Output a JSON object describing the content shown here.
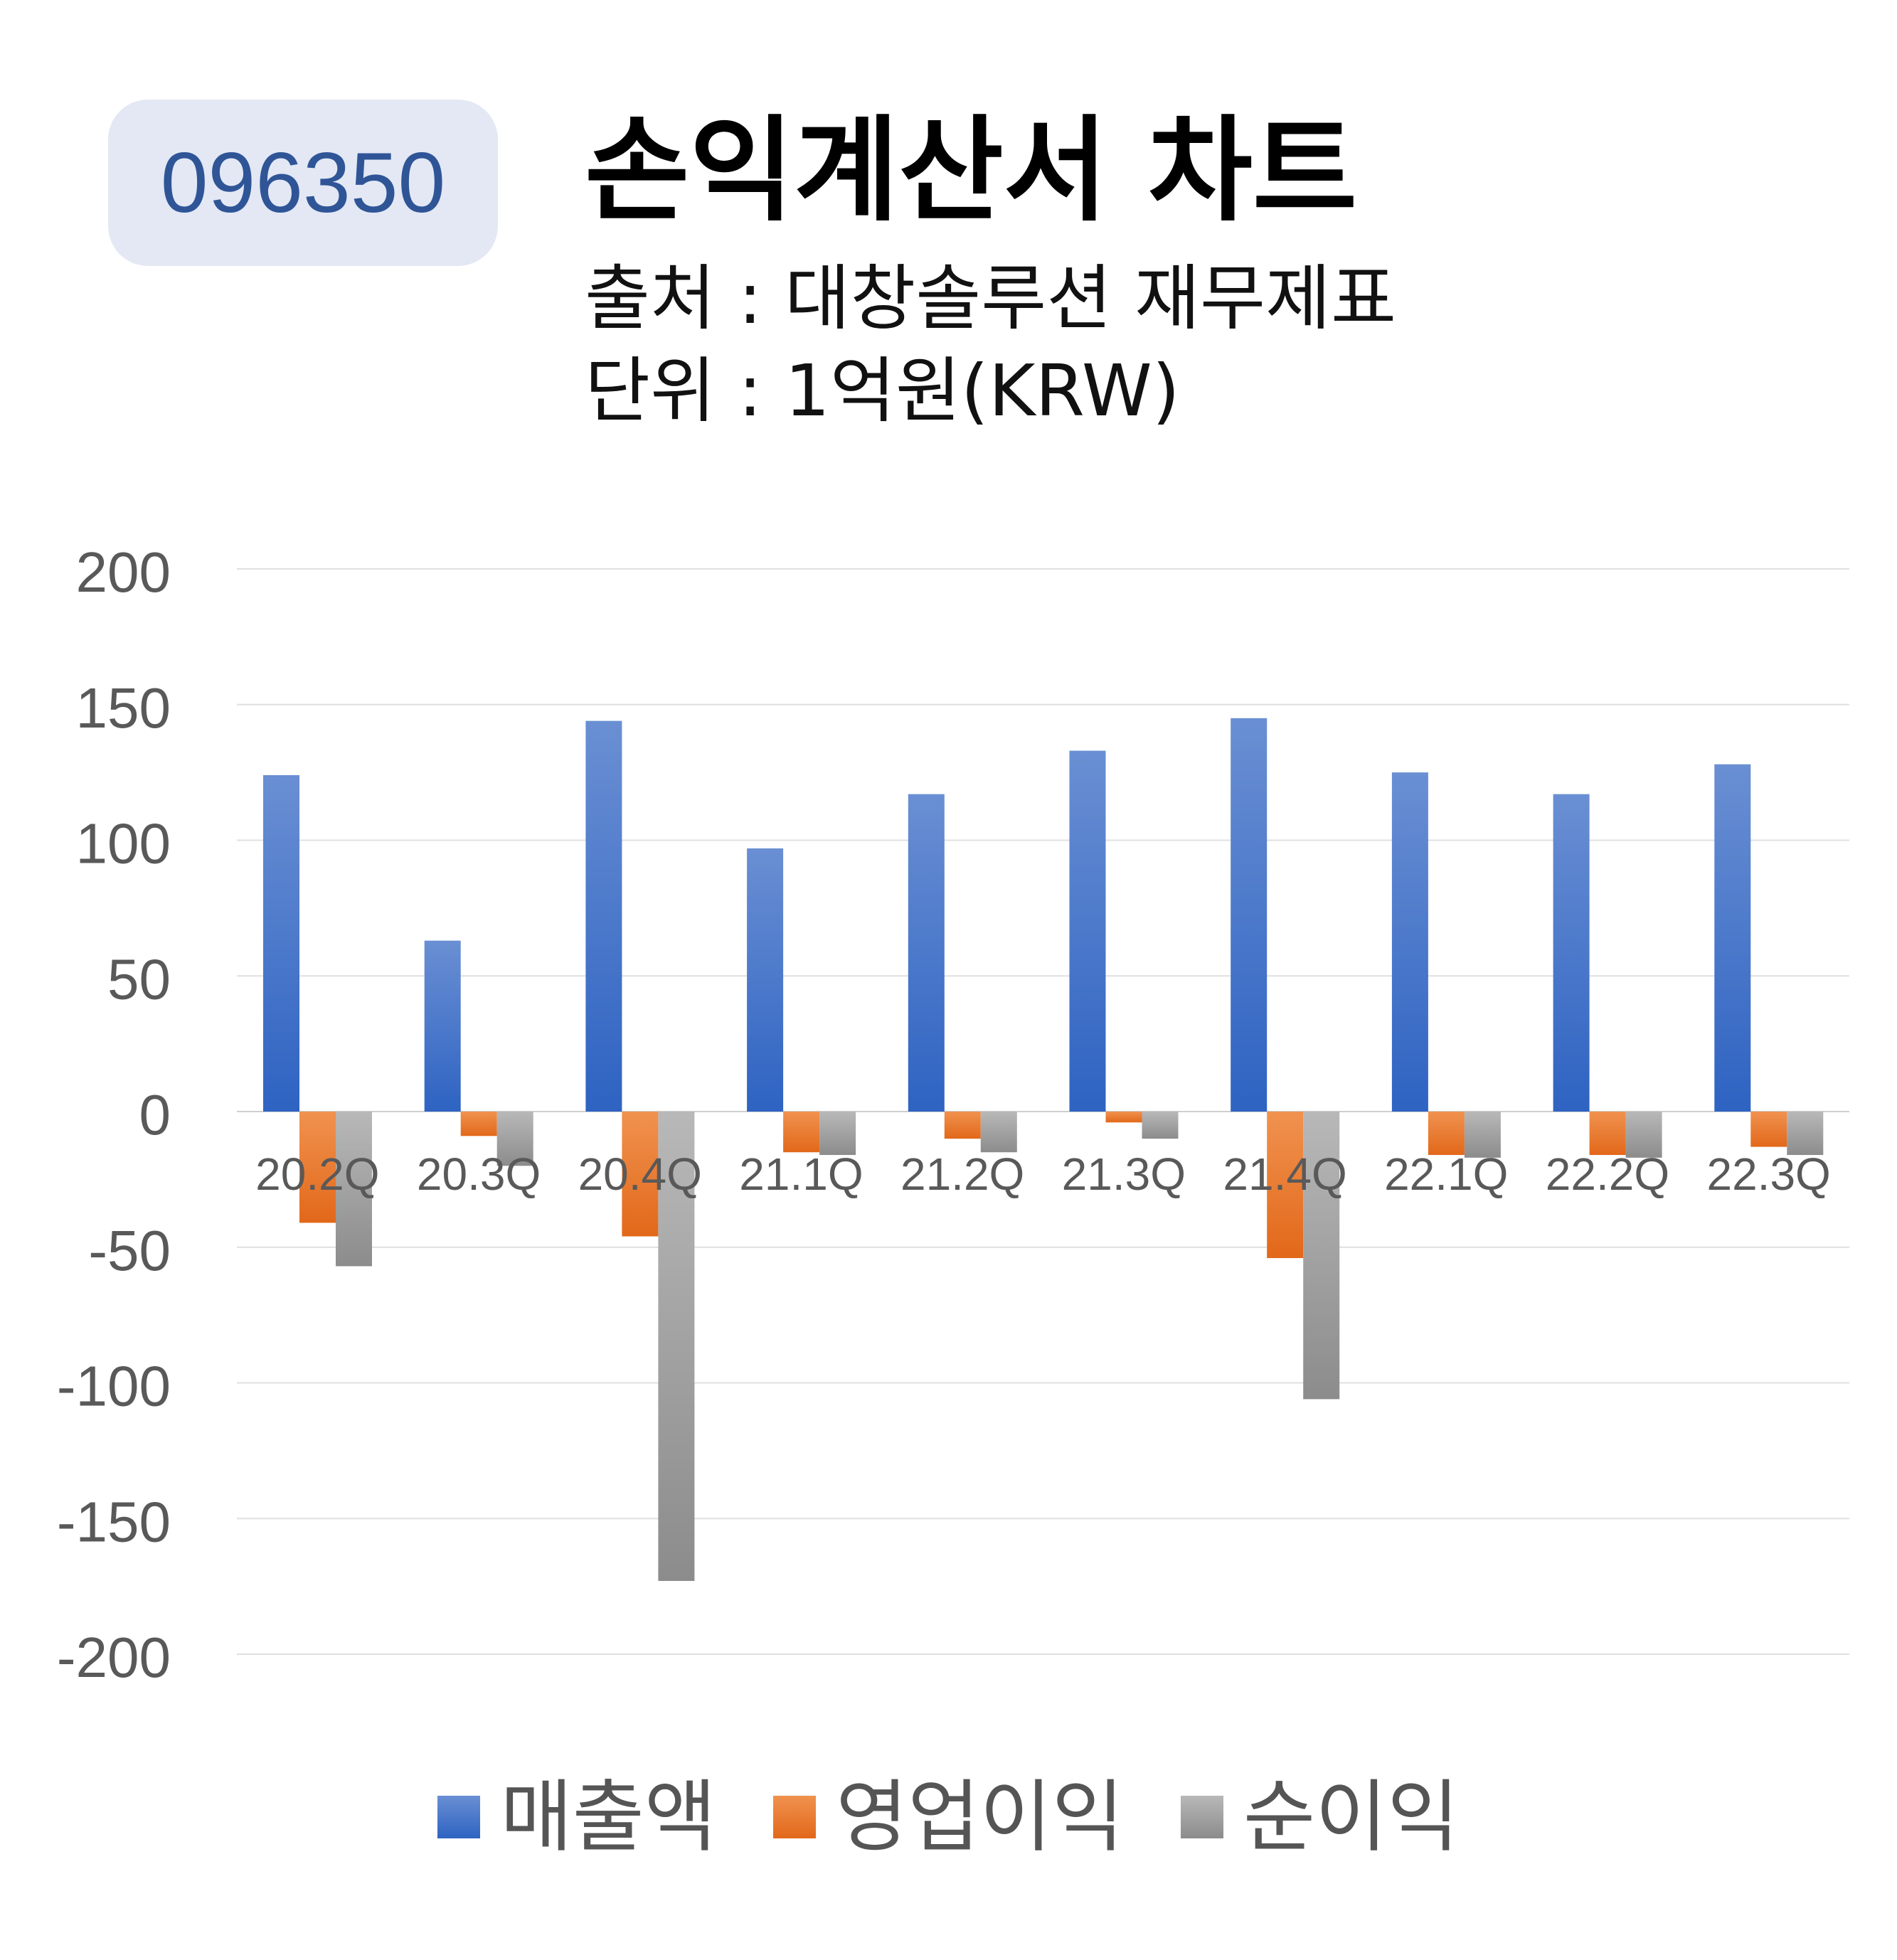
{
  "badge": {
    "code": "096350"
  },
  "header": {
    "title": "손익계산서 차트",
    "source": "출처 : 대창솔루션 재무제표",
    "unit": "단위 : 1억원(KRW)"
  },
  "chart_data": {
    "type": "bar",
    "title": "손익계산서 차트",
    "categories": [
      "20.2Q",
      "20.3Q",
      "20.4Q",
      "21.1Q",
      "21.2Q",
      "21.3Q",
      "21.4Q",
      "22.1Q",
      "22.2Q",
      "22.3Q"
    ],
    "series": [
      {
        "name": "매출액",
        "color": "#4472c4",
        "values": [
          124,
          63,
          144,
          97,
          117,
          133,
          145,
          125,
          117,
          128
        ]
      },
      {
        "name": "영업이익",
        "color": "#ed7d31",
        "values": [
          -41,
          -9,
          -46,
          -15,
          -10,
          -4,
          -54,
          -16,
          -16,
          -13
        ]
      },
      {
        "name": "순이익",
        "color": "#a5a5a5",
        "values": [
          -57,
          -20,
          -173,
          -16,
          -15,
          -10,
          -106,
          -17,
          -17,
          -16
        ]
      }
    ],
    "yticks": [
      200,
      150,
      100,
      50,
      0,
      -50,
      -100,
      -150,
      -200
    ],
    "ylim": [
      -200,
      200
    ],
    "grid": true,
    "legend": "bottom"
  }
}
